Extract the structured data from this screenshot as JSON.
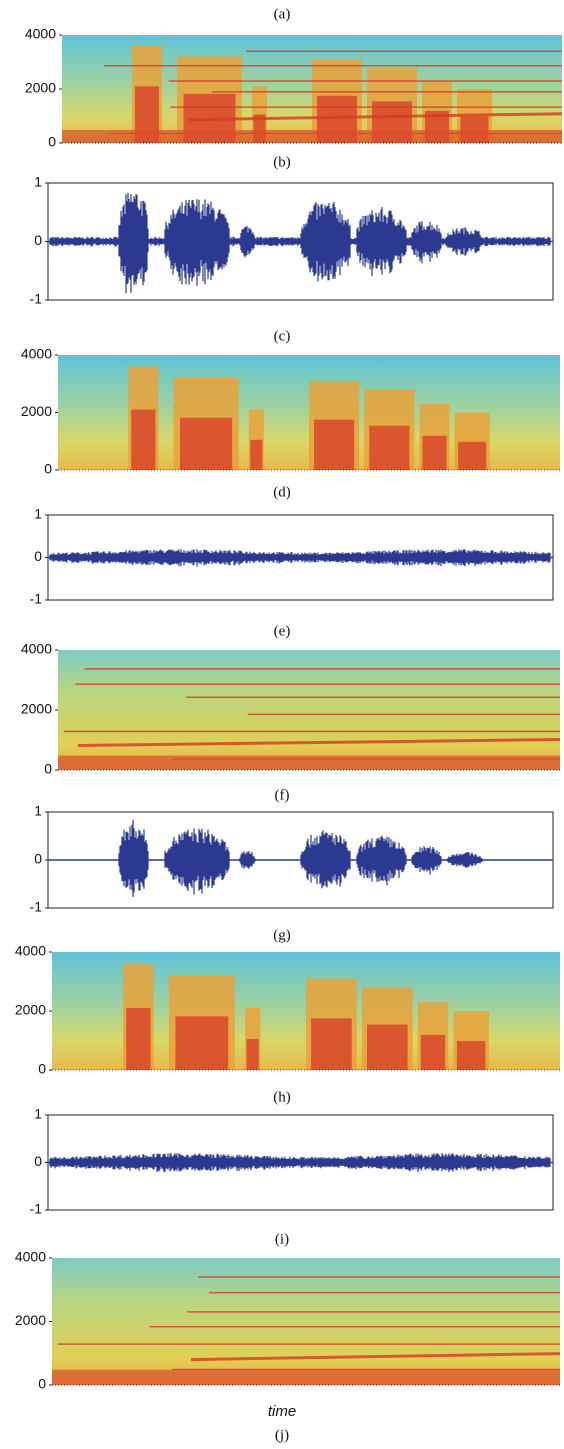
{
  "panels": [
    {
      "label": "(a)",
      "kind": "spectrogram",
      "ylim": [
        0,
        4000
      ],
      "yticks": [
        0,
        2000,
        4000
      ]
    },
    {
      "label": "(b)",
      "kind": "waveform",
      "ylim": [
        -1,
        1
      ],
      "yticks": [
        -1,
        0,
        1
      ]
    },
    {
      "label": "(c)",
      "kind": "spectrogram",
      "ylim": [
        0,
        4000
      ],
      "yticks": [
        0,
        2000,
        4000
      ]
    },
    {
      "label": "(d)",
      "kind": "waveform",
      "ylim": [
        -1,
        1
      ],
      "yticks": [
        -1,
        0,
        1
      ]
    },
    {
      "label": "(e)",
      "kind": "spectrogram",
      "ylim": [
        0,
        4000
      ],
      "yticks": [
        0,
        2000,
        4000
      ]
    },
    {
      "label": "(f)",
      "kind": "waveform",
      "ylim": [
        -1,
        1
      ],
      "yticks": [
        -1,
        0,
        1
      ]
    },
    {
      "label": "(g)",
      "kind": "spectrogram",
      "ylim": [
        0,
        4000
      ],
      "yticks": [
        0,
        2000,
        4000
      ]
    },
    {
      "label": "(h)",
      "kind": "waveform",
      "ylim": [
        -1,
        1
      ],
      "yticks": [
        -1,
        0,
        1
      ]
    },
    {
      "label": "(i)",
      "kind": "spectrogram",
      "ylim": [
        0,
        4000
      ],
      "yticks": [
        0,
        2000,
        4000
      ]
    }
  ],
  "xlabel": "time",
  "last_label": "(j)"
}
